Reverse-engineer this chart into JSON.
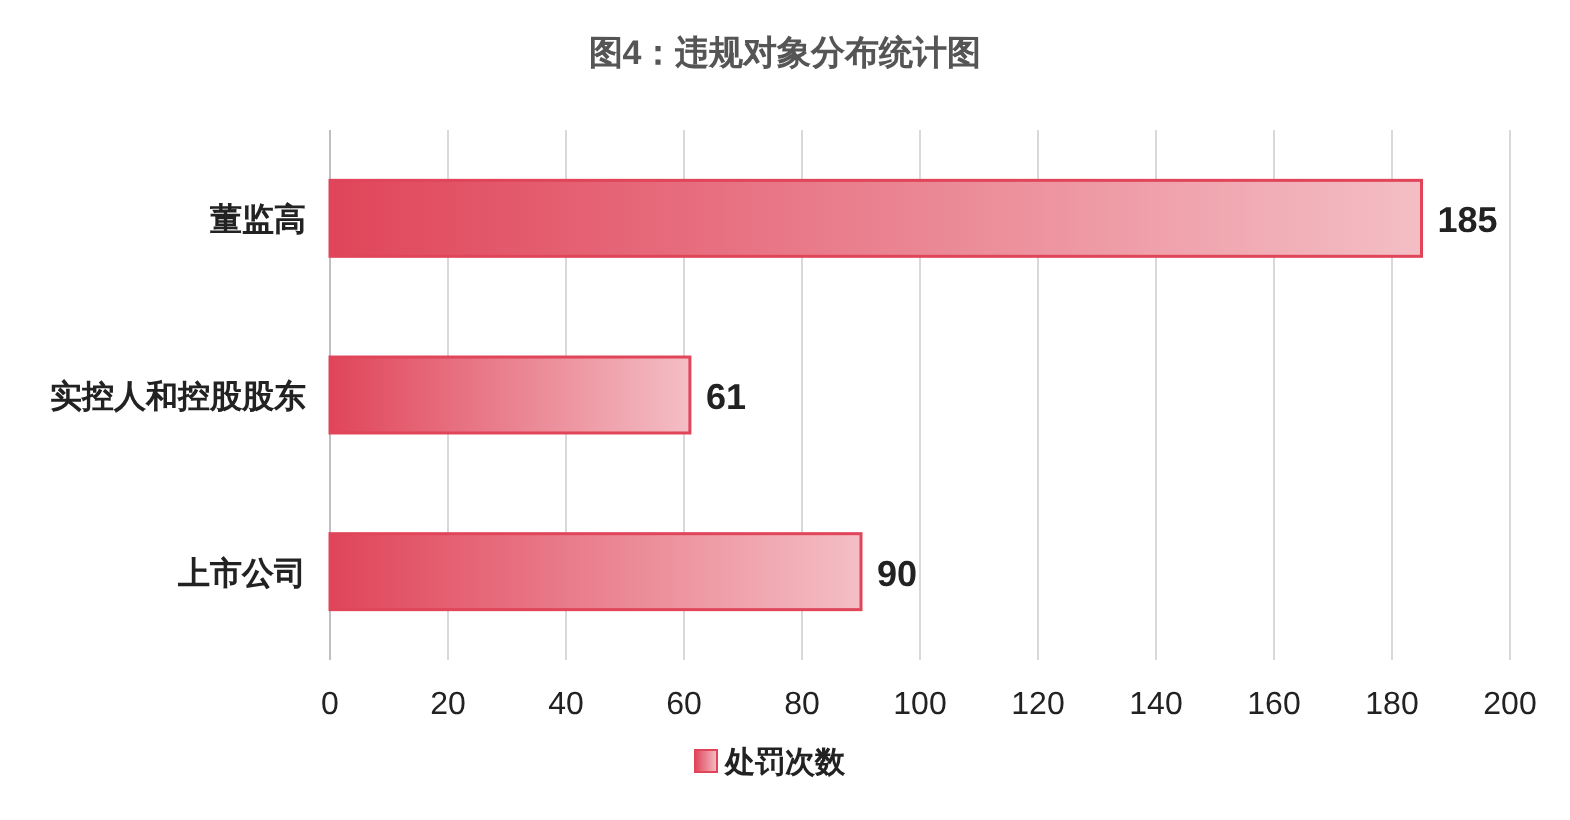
{
  "chart_data": {
    "type": "bar",
    "orientation": "horizontal",
    "title": "图4：违规对象分布统计图",
    "categories": [
      "董监高",
      "实控人和控股股东",
      "上市公司"
    ],
    "series": [
      {
        "name": "处罚次数",
        "color": "#e0455a",
        "values": [
          185,
          61,
          90
        ]
      }
    ],
    "xlim": [
      0,
      200
    ],
    "xticks": [
      0,
      20,
      40,
      60,
      80,
      100,
      120,
      140,
      160,
      180,
      200
    ],
    "grid": "x",
    "legend": "bottom",
    "data_labels": true
  }
}
